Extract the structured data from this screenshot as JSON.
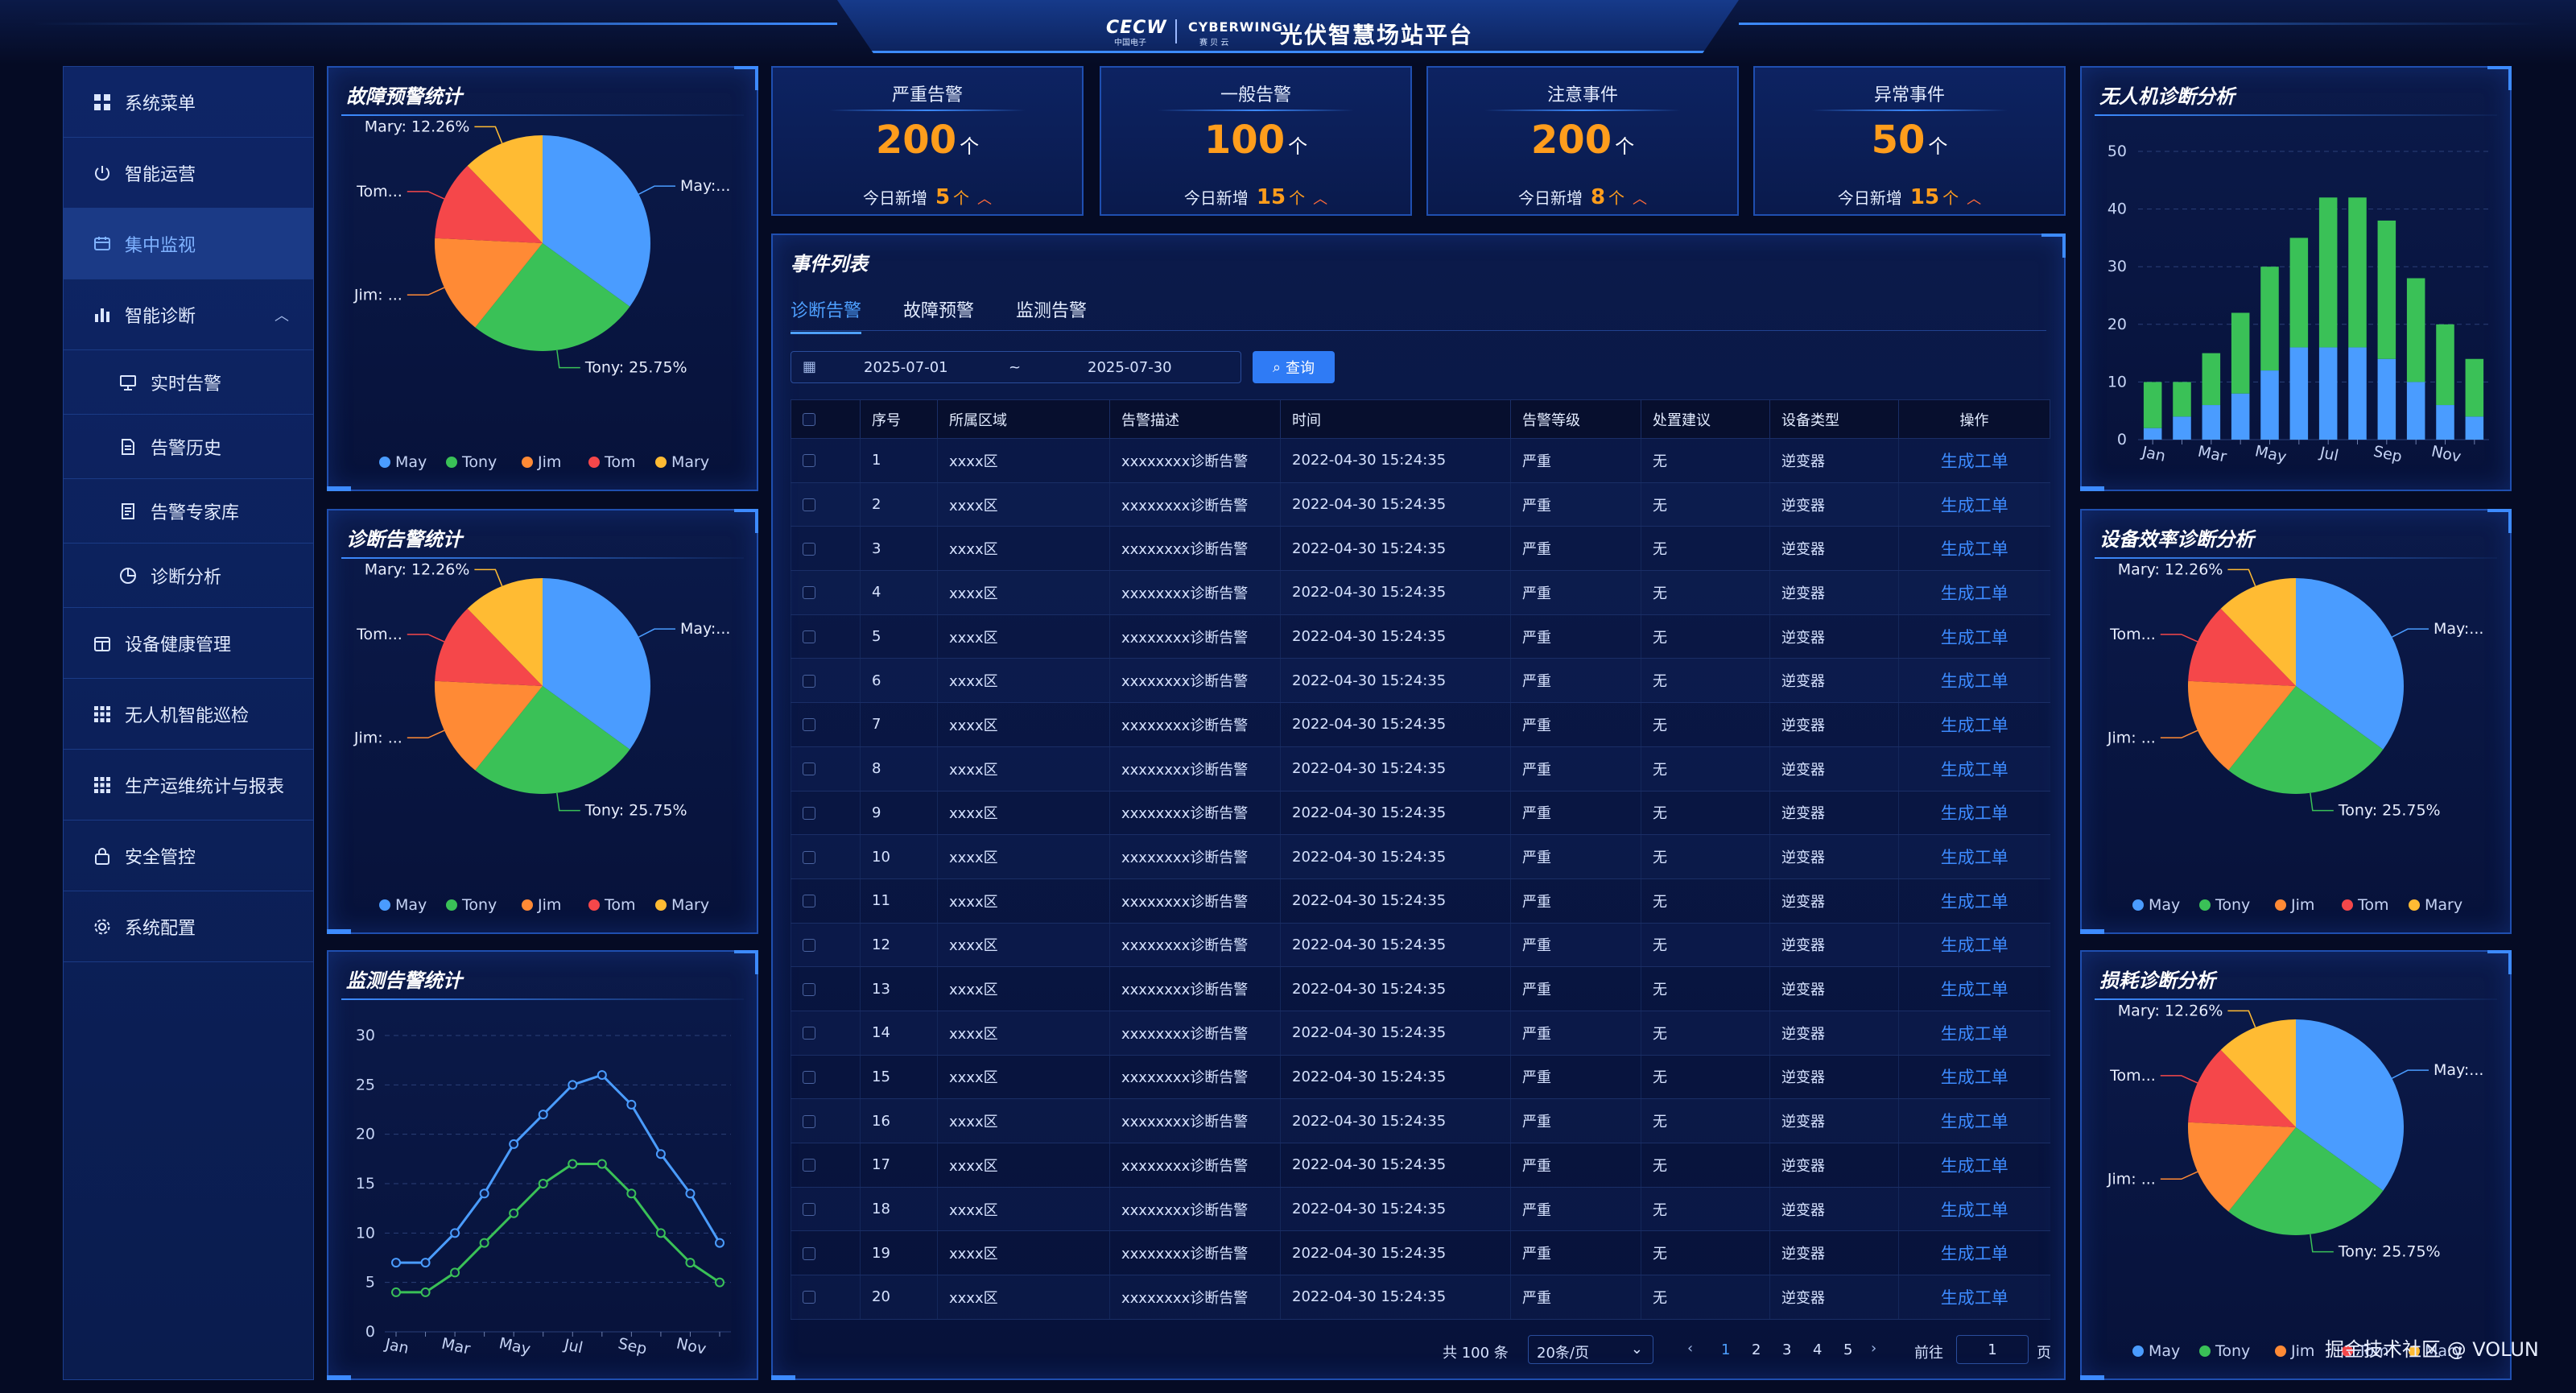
{
  "header": {
    "logo_left": "CECW",
    "logo_left_sub": "中国电子",
    "logo_right": "CYBERWING",
    "logo_right_sub": "赛 贝 云",
    "title": "光伏智慧场站平台"
  },
  "sidebar": {
    "items": [
      {
        "label": "系统菜单",
        "icon": "grid-icon"
      },
      {
        "label": "智能运营",
        "icon": "power-icon"
      },
      {
        "label": "集中监视",
        "icon": "monitor-icon"
      },
      {
        "label": "智能诊断",
        "icon": "bar-chart-icon"
      },
      {
        "label": "实时告警",
        "icon": "alarm-icon"
      },
      {
        "label": "告警历史",
        "icon": "document-icon"
      },
      {
        "label": "告警专家库",
        "icon": "library-icon"
      },
      {
        "label": "诊断分析",
        "icon": "pie-icon"
      },
      {
        "label": "设备健康管理",
        "icon": "calendar-icon"
      },
      {
        "label": "无人机智能巡检",
        "icon": "drone-icon"
      },
      {
        "label": "生产运维统计与报表",
        "icon": "report-icon"
      },
      {
        "label": "安全管控",
        "icon": "lock-icon"
      },
      {
        "label": "系统配置",
        "icon": "gear-icon"
      }
    ]
  },
  "stats": [
    {
      "label": "严重告警",
      "value": "200",
      "unit": "个",
      "today_label": "今日新增",
      "today_value": "5",
      "today_unit": "个"
    },
    {
      "label": "一般告警",
      "value": "100",
      "unit": "个",
      "today_label": "今日新增",
      "today_value": "15",
      "today_unit": "个"
    },
    {
      "label": "注意事件",
      "value": "200",
      "unit": "个",
      "today_label": "今日新增",
      "today_value": "8",
      "today_unit": "个"
    },
    {
      "label": "异常事件",
      "value": "50",
      "unit": "个",
      "today_label": "今日新增",
      "today_value": "15",
      "today_unit": "个"
    }
  ],
  "panels": {
    "fault_warning": "故障预警统计",
    "diag_alarm": "诊断告警统计",
    "monitor_alarm": "监测告警统计",
    "drone_diag": "无人机诊断分析",
    "efficiency_diag": "设备效率诊断分析",
    "loss_diag": "损耗诊断分析"
  },
  "events": {
    "title": "事件列表",
    "tabs": [
      "诊断告警",
      "故障预警",
      "监测告警"
    ],
    "date_start": "2025-07-01",
    "date_sep": "~",
    "date_end": "2025-07-30",
    "query_label": "查询",
    "columns": [
      "序号",
      "所属区域",
      "告警描述",
      "时间",
      "告警等级",
      "处置建议",
      "设备类型",
      "操作"
    ],
    "row_template": {
      "area": "xxxx区",
      "desc": "xxxxxxxx诊断告警",
      "time": "2022-04-30 15:24:35",
      "level": "严重",
      "advice": "无",
      "device": "逆变器",
      "action": "生成工单"
    },
    "rows": [
      {
        "no": "1"
      },
      {
        "no": "2"
      },
      {
        "no": "3"
      },
      {
        "no": "4"
      },
      {
        "no": "5"
      },
      {
        "no": "6"
      },
      {
        "no": "7"
      },
      {
        "no": "8"
      },
      {
        "no": "9"
      },
      {
        "no": "10"
      },
      {
        "no": "11"
      },
      {
        "no": "12"
      },
      {
        "no": "13"
      },
      {
        "no": "14"
      },
      {
        "no": "15"
      },
      {
        "no": "16"
      },
      {
        "no": "17"
      },
      {
        "no": "18"
      },
      {
        "no": "19"
      },
      {
        "no": "20"
      }
    ],
    "pager": {
      "total": "共 100 条",
      "page_size": "20条/页",
      "pages": [
        "1",
        "2",
        "3",
        "4",
        "5"
      ],
      "current": "1",
      "goto_label": "前往",
      "goto_value": "1",
      "goto_suffix": "页"
    }
  },
  "colors": {
    "accent": "#3d8bff",
    "orange": "#ff9d1c",
    "pie_may": "#4a9cff",
    "pie_tony": "#3ac157",
    "pie_jim": "#ff8a35",
    "pie_tom": "#f5474a",
    "pie_mary": "#ffbb33"
  },
  "watermark": "掘金技术社区 @ VOLUN",
  "chart_data": [
    {
      "id": "fault_warning_pie",
      "type": "pie",
      "title": "故障预警统计",
      "slices": [
        {
          "name": "May",
          "value": 35.0,
          "label": "May:..."
        },
        {
          "name": "Tony",
          "value": 25.75,
          "label": "Tony: 25.75%"
        },
        {
          "name": "Jim",
          "value": 15.0,
          "label": "Jim: ..."
        },
        {
          "name": "Tom",
          "value": 12.0,
          "label": "Tom..."
        },
        {
          "name": "Mary",
          "value": 12.26,
          "label": "Mary: 12.26%"
        }
      ],
      "legend": [
        "May",
        "Tony",
        "Jim",
        "Tom",
        "Mary"
      ]
    },
    {
      "id": "diag_alarm_pie",
      "type": "pie",
      "title": "诊断告警统计",
      "slices": [
        {
          "name": "May",
          "value": 35.0,
          "label": "May:..."
        },
        {
          "name": "Tony",
          "value": 25.75,
          "label": "Tony: 25.75%"
        },
        {
          "name": "Jim",
          "value": 15.0,
          "label": "Jim: ..."
        },
        {
          "name": "Tom",
          "value": 12.0,
          "label": "Tom..."
        },
        {
          "name": "Mary",
          "value": 12.26,
          "label": "Mary: 12.26%"
        }
      ],
      "legend": [
        "May",
        "Tony",
        "Jim",
        "Tom",
        "Mary"
      ]
    },
    {
      "id": "monitor_alarm_line",
      "type": "line",
      "title": "监测告警统计",
      "x": [
        "Jan",
        "Feb",
        "Mar",
        "Apr",
        "May",
        "Jun",
        "Jul",
        "Aug",
        "Sep",
        "Oct",
        "Nov",
        "Dec"
      ],
      "xtick_labels": [
        "Jan",
        "Mar",
        "May",
        "Jul",
        "Sep",
        "Nov"
      ],
      "ylim": [
        0,
        30
      ],
      "yticks": [
        0,
        5,
        10,
        15,
        20,
        25,
        30
      ],
      "series": [
        {
          "values": [
            7,
            7,
            10,
            14,
            19,
            22,
            25,
            26,
            23,
            18,
            14,
            9
          ],
          "color": "#4a9cff"
        },
        {
          "values": [
            4,
            4,
            6,
            9,
            12,
            15,
            17,
            17,
            14,
            10,
            7,
            5
          ],
          "color": "#3ac157"
        }
      ]
    },
    {
      "id": "drone_diag_bar",
      "type": "bar",
      "title": "无人机诊断分析",
      "categories": [
        "Jan",
        "Feb",
        "Mar",
        "Apr",
        "May",
        "Jun",
        "Jul",
        "Aug",
        "Sep",
        "Oct",
        "Nov",
        "Dec"
      ],
      "xtick_labels": [
        "Jan",
        "Mar",
        "May",
        "Jul",
        "Sep",
        "Nov"
      ],
      "ylim": [
        0,
        50
      ],
      "yticks": [
        0,
        10,
        20,
        30,
        40,
        50
      ],
      "stacked": true,
      "series": [
        {
          "values": [
            2,
            4,
            6,
            8,
            12,
            16,
            16,
            16,
            14,
            10,
            6,
            4
          ],
          "color": "#4a9cff"
        },
        {
          "values": [
            8,
            6,
            9,
            14,
            18,
            19,
            26,
            26,
            24,
            18,
            14,
            10
          ],
          "color": "#3ac157"
        }
      ]
    },
    {
      "id": "efficiency_diag_pie",
      "type": "pie",
      "title": "设备效率诊断分析",
      "slices": [
        {
          "name": "May",
          "value": 35.0,
          "label": "May:..."
        },
        {
          "name": "Tony",
          "value": 25.75,
          "label": "Tony: 25.75%"
        },
        {
          "name": "Jim",
          "value": 15.0,
          "label": "Jim: ..."
        },
        {
          "name": "Tom",
          "value": 12.0,
          "label": "Tom..."
        },
        {
          "name": "Mary",
          "value": 12.26,
          "label": "Mary: 12.26%"
        }
      ],
      "legend": [
        "May",
        "Tony",
        "Jim",
        "Tom",
        "Mary"
      ]
    },
    {
      "id": "loss_diag_pie",
      "type": "pie",
      "title": "损耗诊断分析",
      "slices": [
        {
          "name": "May",
          "value": 35.0,
          "label": "May:..."
        },
        {
          "name": "Tony",
          "value": 25.75,
          "label": "Tony: 25.75%"
        },
        {
          "name": "Jim",
          "value": 15.0,
          "label": "Jim: ..."
        },
        {
          "name": "Tom",
          "value": 12.0,
          "label": "Tom..."
        },
        {
          "name": "Mary",
          "value": 12.26,
          "label": "Mary: 12.26%"
        }
      ],
      "legend": [
        "May",
        "Tony",
        "Jim",
        "Tom",
        "Mary"
      ]
    }
  ]
}
